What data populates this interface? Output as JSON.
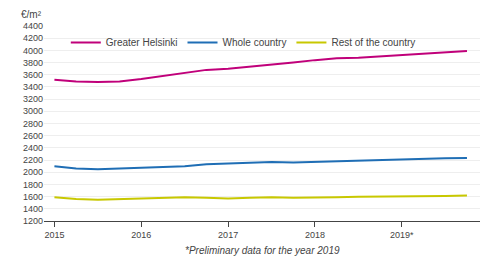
{
  "chart_data": {
    "type": "line",
    "ylabel": "€/m²",
    "annotations": [
      "*Preliminary data for the year 2019"
    ],
    "x": [
      2015.0,
      2015.25,
      2015.5,
      2015.75,
      2016.0,
      2016.25,
      2016.5,
      2016.75,
      2017.0,
      2017.25,
      2017.5,
      2017.75,
      2018.0,
      2018.25,
      2018.5,
      2018.75,
      2019.0,
      2019.25,
      2019.5,
      2019.75
    ],
    "series": [
      {
        "name": "Greater Helsinki",
        "color": "#c0007a",
        "values": [
          3520,
          3490,
          3480,
          3490,
          3530,
          3580,
          3630,
          3680,
          3700,
          3730,
          3760,
          3800,
          3840,
          3870,
          3880,
          3900,
          3930,
          3950,
          3970,
          3990
        ]
      },
      {
        "name": "Whole country",
        "color": "#1f6eb5",
        "values": [
          2100,
          2060,
          2050,
          2060,
          2070,
          2080,
          2100,
          2130,
          2140,
          2160,
          2170,
          2160,
          2170,
          2190,
          2200,
          2210,
          2210,
          2220,
          2230,
          2235
        ]
      },
      {
        "name": "Rest of the country",
        "color": "#c8c800",
        "values": [
          1590,
          1560,
          1550,
          1560,
          1570,
          1570,
          1590,
          1580,
          1570,
          1580,
          1590,
          1580,
          1580,
          1590,
          1600,
          1600,
          1600,
          1600,
          1610,
          1620
        ]
      }
    ],
    "xlim": [
      2014.88,
      2019.9
    ],
    "xticks": [
      2015,
      2016,
      2017,
      2018,
      {
        "value": 2019,
        "label": "2019*"
      }
    ],
    "ylim": [
      1200,
      4400
    ],
    "yticks": [
      1200,
      1400,
      1600,
      1800,
      2000,
      2200,
      2400,
      2600,
      2800,
      3000,
      3200,
      3400,
      3600,
      3800,
      4000,
      4200,
      4400
    ],
    "grid": true,
    "legend": "upper left"
  }
}
